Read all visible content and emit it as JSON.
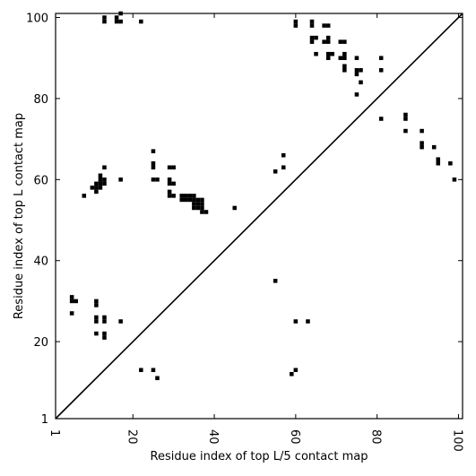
{
  "chart_data": {
    "type": "scatter",
    "title": "",
    "xlabel": "Residue index of top L/5 contact map",
    "ylabel": "Residue index of top L contact map",
    "xlim": [
      1,
      101
    ],
    "ylim": [
      1,
      101
    ],
    "x_ticks": [
      1,
      20,
      40,
      60,
      80,
      100
    ],
    "y_ticks": [
      1,
      20,
      40,
      60,
      80,
      100
    ],
    "x_tick_labels": [
      "1",
      "20",
      "40",
      "60",
      "80",
      "100"
    ],
    "y_tick_labels": [
      "1",
      "20",
      "40",
      "60",
      "80",
      "100"
    ],
    "grid": false,
    "marker": "square",
    "marker_color": "#000000",
    "diagonal": {
      "from": [
        1,
        1
      ],
      "to": [
        101,
        101
      ]
    },
    "series": [
      {
        "points_upper_triangle": [
          [
            13,
            100
          ],
          [
            13,
            99
          ],
          [
            16,
            100
          ],
          [
            16,
            99
          ],
          [
            17,
            99
          ],
          [
            17,
            101
          ],
          [
            22,
            99
          ],
          [
            60,
            99
          ],
          [
            60,
            98
          ],
          [
            64,
            99
          ],
          [
            64,
            98
          ],
          [
            67,
            98
          ],
          [
            68,
            98
          ],
          [
            64,
            95
          ],
          [
            65,
            95
          ],
          [
            64,
            94
          ],
          [
            68,
            95
          ],
          [
            67,
            94
          ],
          [
            68,
            94
          ],
          [
            65,
            91
          ],
          [
            68,
            91
          ],
          [
            69,
            91
          ],
          [
            68,
            90
          ],
          [
            71,
            94
          ],
          [
            72,
            94
          ],
          [
            71,
            90
          ],
          [
            72,
            90
          ],
          [
            72,
            91
          ],
          [
            72,
            88
          ],
          [
            72,
            87
          ],
          [
            75,
            90
          ],
          [
            75,
            87
          ],
          [
            76,
            87
          ],
          [
            75,
            86
          ],
          [
            76,
            84
          ],
          [
            75,
            81
          ],
          [
            81,
            90
          ],
          [
            81,
            87
          ],
          [
            81,
            75
          ],
          [
            87,
            76
          ],
          [
            87,
            75
          ],
          [
            87,
            72
          ],
          [
            91,
            72
          ],
          [
            91,
            69
          ],
          [
            91,
            68
          ],
          [
            94,
            68
          ],
          [
            95,
            65
          ],
          [
            95,
            64
          ],
          [
            98,
            64
          ],
          [
            99,
            60
          ],
          [
            55,
            62
          ],
          [
            57,
            66
          ],
          [
            57,
            63
          ],
          [
            45,
            53
          ],
          [
            25,
            67
          ],
          [
            25,
            64
          ],
          [
            25,
            63
          ],
          [
            25,
            60
          ],
          [
            26,
            60
          ],
          [
            29,
            63
          ],
          [
            30,
            63
          ],
          [
            29,
            60
          ],
          [
            29,
            59
          ],
          [
            30,
            59
          ],
          [
            29,
            57
          ],
          [
            29,
            56
          ],
          [
            30,
            56
          ],
          [
            32,
            56
          ],
          [
            33,
            56
          ],
          [
            34,
            56
          ],
          [
            35,
            56
          ],
          [
            32,
            55
          ],
          [
            33,
            55
          ],
          [
            34,
            55
          ],
          [
            35,
            55
          ],
          [
            36,
            55
          ],
          [
            37,
            55
          ],
          [
            35,
            54
          ],
          [
            36,
            54
          ],
          [
            37,
            54
          ],
          [
            35,
            53
          ],
          [
            36,
            53
          ],
          [
            37,
            53
          ],
          [
            37,
            52
          ],
          [
            38,
            52
          ],
          [
            13,
            63
          ],
          [
            12,
            61
          ],
          [
            12,
            60
          ],
          [
            13,
            60
          ],
          [
            11,
            59
          ],
          [
            12,
            59
          ],
          [
            13,
            59
          ],
          [
            11,
            58
          ],
          [
            12,
            58
          ],
          [
            10,
            58
          ],
          [
            11,
            57
          ],
          [
            8,
            56
          ],
          [
            17,
            60
          ]
        ]
      },
      {
        "points_lower_triangle": [
          [
            55,
            35
          ],
          [
            5,
            31
          ],
          [
            5,
            30
          ],
          [
            6,
            30
          ],
          [
            11,
            30
          ],
          [
            11,
            29
          ],
          [
            5,
            27
          ],
          [
            11,
            26
          ],
          [
            13,
            26
          ],
          [
            11,
            25
          ],
          [
            13,
            25
          ],
          [
            17,
            25
          ],
          [
            60,
            25
          ],
          [
            63,
            25
          ],
          [
            11,
            22
          ],
          [
            13,
            22
          ],
          [
            13,
            21
          ],
          [
            22,
            13
          ],
          [
            25,
            13
          ],
          [
            26,
            11
          ],
          [
            60,
            13
          ],
          [
            59,
            12
          ]
        ]
      }
    ]
  }
}
